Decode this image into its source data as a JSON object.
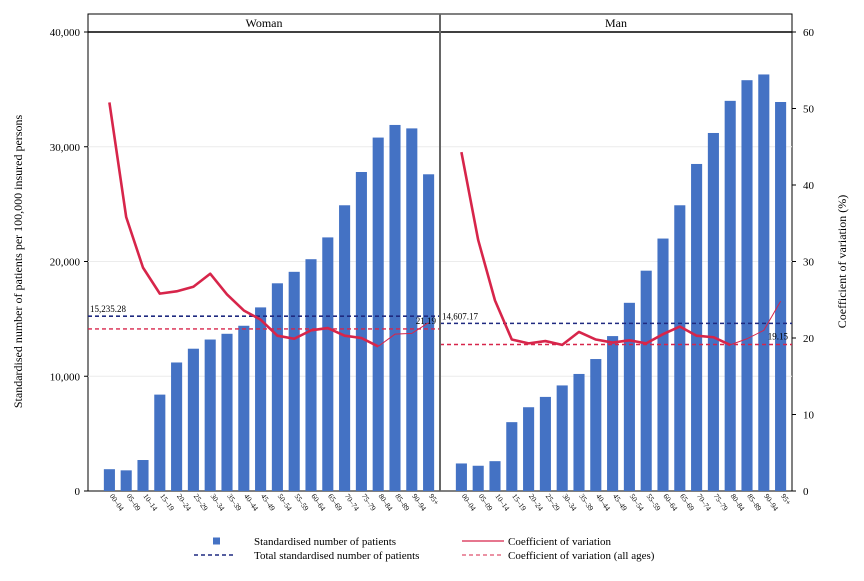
{
  "chart_data": {
    "type": "bar",
    "panels": [
      "Woman",
      "Man"
    ],
    "y_left_label": "Standardised number of patients per 100,000 insured persons",
    "y_right_label": "Coefficient of variation (%)",
    "y_left_ticks": [
      "0",
      "10,000",
      "20,000",
      "30,000",
      "40,000"
    ],
    "y_right_ticks": [
      "0",
      "10",
      "20",
      "30",
      "40",
      "50",
      "60"
    ],
    "ylim_left": [
      0,
      40000
    ],
    "ylim_right": [
      0,
      60
    ],
    "categories": [
      "00–04",
      "05–09",
      "10–14",
      "15–19",
      "20–24",
      "25–29",
      "30–34",
      "35–39",
      "40–44",
      "45–49",
      "50–54",
      "55–59",
      "60–64",
      "65–69",
      "70–74",
      "75–79",
      "80–84",
      "85–89",
      "90–94",
      "95+"
    ],
    "series": [
      {
        "name": "Standardised number of patients",
        "type": "bar",
        "axis": "left",
        "color": "#4472c4",
        "Woman": [
          1900,
          1800,
          2700,
          8400,
          11200,
          12400,
          13200,
          13700,
          14400,
          16000,
          18100,
          19100,
          20200,
          22100,
          24900,
          27800,
          30800,
          31900,
          31600,
          27600
        ],
        "Man": [
          2400,
          2200,
          2600,
          6000,
          7300,
          8200,
          9200,
          10200,
          11500,
          13500,
          16400,
          19200,
          22000,
          24900,
          28500,
          31200,
          34000,
          35800,
          36300,
          33900
        ]
      },
      {
        "name": "Coefficient of variation",
        "type": "line",
        "axis": "right",
        "color": "#d7254a",
        "Woman": [
          50.8,
          35.8,
          29.2,
          25.8,
          26.1,
          26.7,
          28.4,
          25.7,
          23.6,
          22.4,
          20.3,
          19.9,
          21.0,
          21.3,
          20.3,
          20.0,
          18.9,
          20.5,
          20.6,
          22.0
        ],
        "Man": [
          44.3,
          32.8,
          24.9,
          19.8,
          19.3,
          19.6,
          19.1,
          20.8,
          19.8,
          19.4,
          19.7,
          19.3,
          20.5,
          21.5,
          20.3,
          20.1,
          19.1,
          19.9,
          21.0,
          24.8
        ]
      }
    ],
    "reference_lines": [
      {
        "name": "Total standardised number of patients",
        "axis": "left",
        "color": "#1f2a80",
        "Woman": 15235.28,
        "Man": 14607.17,
        "label_Woman": "15,235.28",
        "label_Man": "14,607.17"
      },
      {
        "name": "Coefficient of variation (all ages)",
        "axis": "right",
        "color": "#d7254a",
        "Woman": 21.19,
        "Man": 19.15,
        "label_Woman": "21.19",
        "label_Man": "19.15"
      }
    ],
    "legend": {
      "placement": "bottom",
      "items": [
        {
          "label": "Standardised number of patients",
          "kind": "square",
          "color": "#4472c4"
        },
        {
          "label": "Coefficient of variation",
          "kind": "line",
          "color": "#d7254a"
        },
        {
          "label": "Total standardised number of patients",
          "kind": "dash",
          "color": "#1f2a80"
        },
        {
          "label": "Coefficient of variation (all ages)",
          "kind": "dash-thin",
          "color": "#d7254a"
        }
      ]
    },
    "grid": true
  }
}
